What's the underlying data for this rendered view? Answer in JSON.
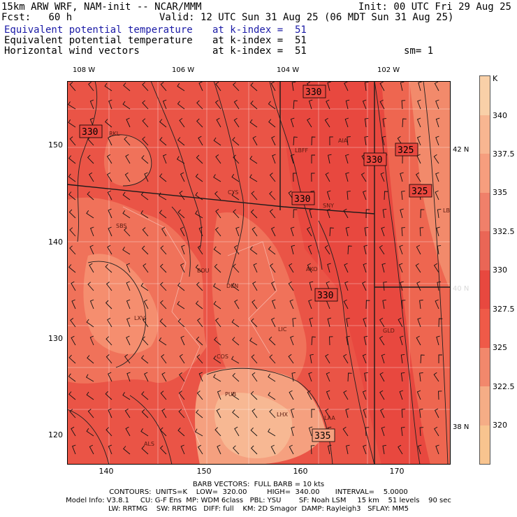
{
  "header": {
    "line1_left": "15km ARW WRF, NAM-init -- NCAR/MMM",
    "line1_right": "Init: 00 UTC Fri 29 Aug 25",
    "fcst_label": "Fcst:",
    "fcst_value": "60 h",
    "valid": "Valid: 12 UTC Sun 31 Aug 25 (06 MDT Sun 31 Aug 25)",
    "fields": [
      {
        "name": "Equivalent potential temperature",
        "level": "at k-index =  51"
      },
      {
        "name": "Equivalent potential temperature",
        "level": "at k-index =  51"
      },
      {
        "name": "Horizontal wind vectors",
        "level": "at k-index =  51"
      }
    ],
    "smoothing": "sm= 1"
  },
  "map": {
    "lon_ticks": [
      "108 W",
      "106 W",
      "104 W",
      "102 W"
    ],
    "lat_labels": [
      "42 N",
      "40 N",
      "38 N"
    ],
    "x_axis": [
      "140",
      "150",
      "160",
      "170"
    ],
    "y_axis": [
      "150",
      "140",
      "130",
      "120"
    ],
    "cities": [
      "RKL",
      "CYS",
      "LBFF",
      "AIA",
      "SNY",
      "SBS",
      "BOU",
      "AKO",
      "DEN",
      "LXV",
      "LIC",
      "GLD",
      "COS",
      "PUB",
      "LHX",
      "LAA",
      "ALS",
      "LBL"
    ],
    "contour_labels": [
      "330",
      "330",
      "325",
      "330",
      "325",
      "330",
      "330",
      "335"
    ]
  },
  "colorbar": {
    "unit": "K",
    "labels": [
      "340",
      "337.5",
      "335",
      "332.5",
      "330",
      "327.5",
      "325",
      "322.5",
      "320"
    ],
    "colors": [
      "#f9d0a8",
      "#f8b691",
      "#f69e7e",
      "#f0806a",
      "#ea6656",
      "#e8483f",
      "#ef5a48",
      "#f2886c",
      "#f5ad86",
      "#f8c48f"
    ]
  },
  "footer": {
    "barb": "BARB VECTORS:  FULL BARB = 10 kts",
    "contours": "CONTOURS:  UNITS=K    LOW=  320.00         HIGH=  340.00       INTERVAL=    5.0000",
    "model1": "Model Info: V3.8.1     CU: G-F Ens  MP: WDM 6class   PBL: YSU        SF: Noah LSM     15 km    51 levels    90 sec",
    "model2": "LW: RRTMG    SW: RRTMG   DIFF: full    KM: 2D Smagor  DAMP: Rayleigh3   SFLAY: MM5"
  }
}
